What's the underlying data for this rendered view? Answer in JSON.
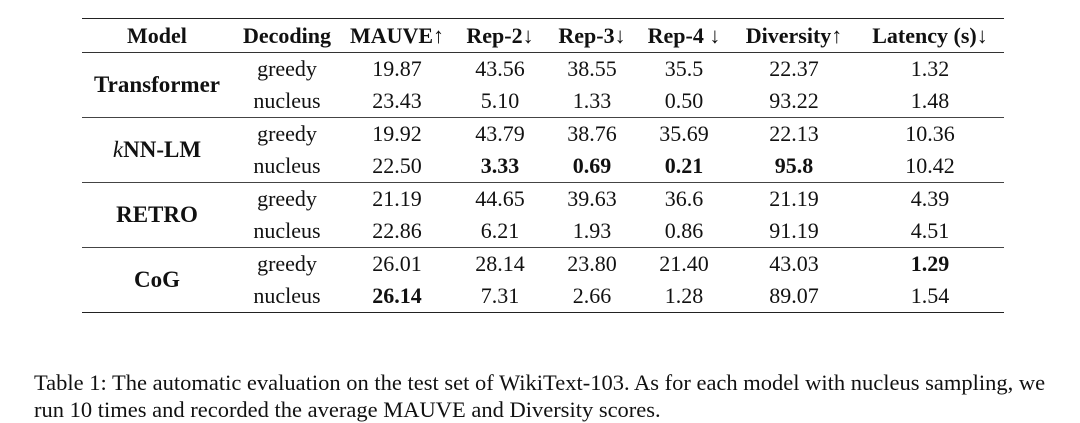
{
  "table": {
    "headers": [
      "Model",
      "Decoding",
      "MAUVE↑",
      "Rep-2↓",
      "Rep-3↓",
      "Rep-4 ↓",
      "Diversity↑",
      "Latency (s)↓"
    ],
    "groups": [
      {
        "model": "Transformer",
        "rows": [
          {
            "decoding": "greedy",
            "mauve": "19.87",
            "rep2": "43.56",
            "rep3": "38.55",
            "rep4": "35.5",
            "diversity": "22.37",
            "latency": "1.32"
          },
          {
            "decoding": "nucleus",
            "mauve": "23.43",
            "rep2": "5.10",
            "rep3": "1.33",
            "rep4": "0.50",
            "diversity": "93.22",
            "latency": "1.48"
          }
        ]
      },
      {
        "model_prefix": "k",
        "model": "NN-LM",
        "rows": [
          {
            "decoding": "greedy",
            "mauve": "19.92",
            "rep2": "43.79",
            "rep3": "38.76",
            "rep4": "35.69",
            "diversity": "22.13",
            "latency": "10.36"
          },
          {
            "decoding": "nucleus",
            "mauve": "22.50",
            "rep2": "3.33",
            "rep3": "0.69",
            "rep4": "0.21",
            "diversity": "95.8",
            "latency": "10.42"
          }
        ]
      },
      {
        "model": "RETRO",
        "rows": [
          {
            "decoding": "greedy",
            "mauve": "21.19",
            "rep2": "44.65",
            "rep3": "39.63",
            "rep4": "36.6",
            "diversity": "21.19",
            "latency": "4.39"
          },
          {
            "decoding": "nucleus",
            "mauve": "22.86",
            "rep2": "6.21",
            "rep3": "1.93",
            "rep4": "0.86",
            "diversity": "91.19",
            "latency": "4.51"
          }
        ]
      },
      {
        "model": "CoG",
        "rows": [
          {
            "decoding": "greedy",
            "mauve": "26.01",
            "rep2": "28.14",
            "rep3": "23.80",
            "rep4": "21.40",
            "diversity": "43.03",
            "latency": "1.29"
          },
          {
            "decoding": "nucleus",
            "mauve": "26.14",
            "rep2": "7.31",
            "rep3": "2.66",
            "rep4": "1.28",
            "diversity": "89.07",
            "latency": "1.54"
          }
        ]
      }
    ]
  },
  "caption": {
    "text": "Table 1: The automatic evaluation on the test set of WikiText-103. As for each model with nucleus sampling, we run 10 times and recorded the average MAUVE and Diversity scores."
  }
}
